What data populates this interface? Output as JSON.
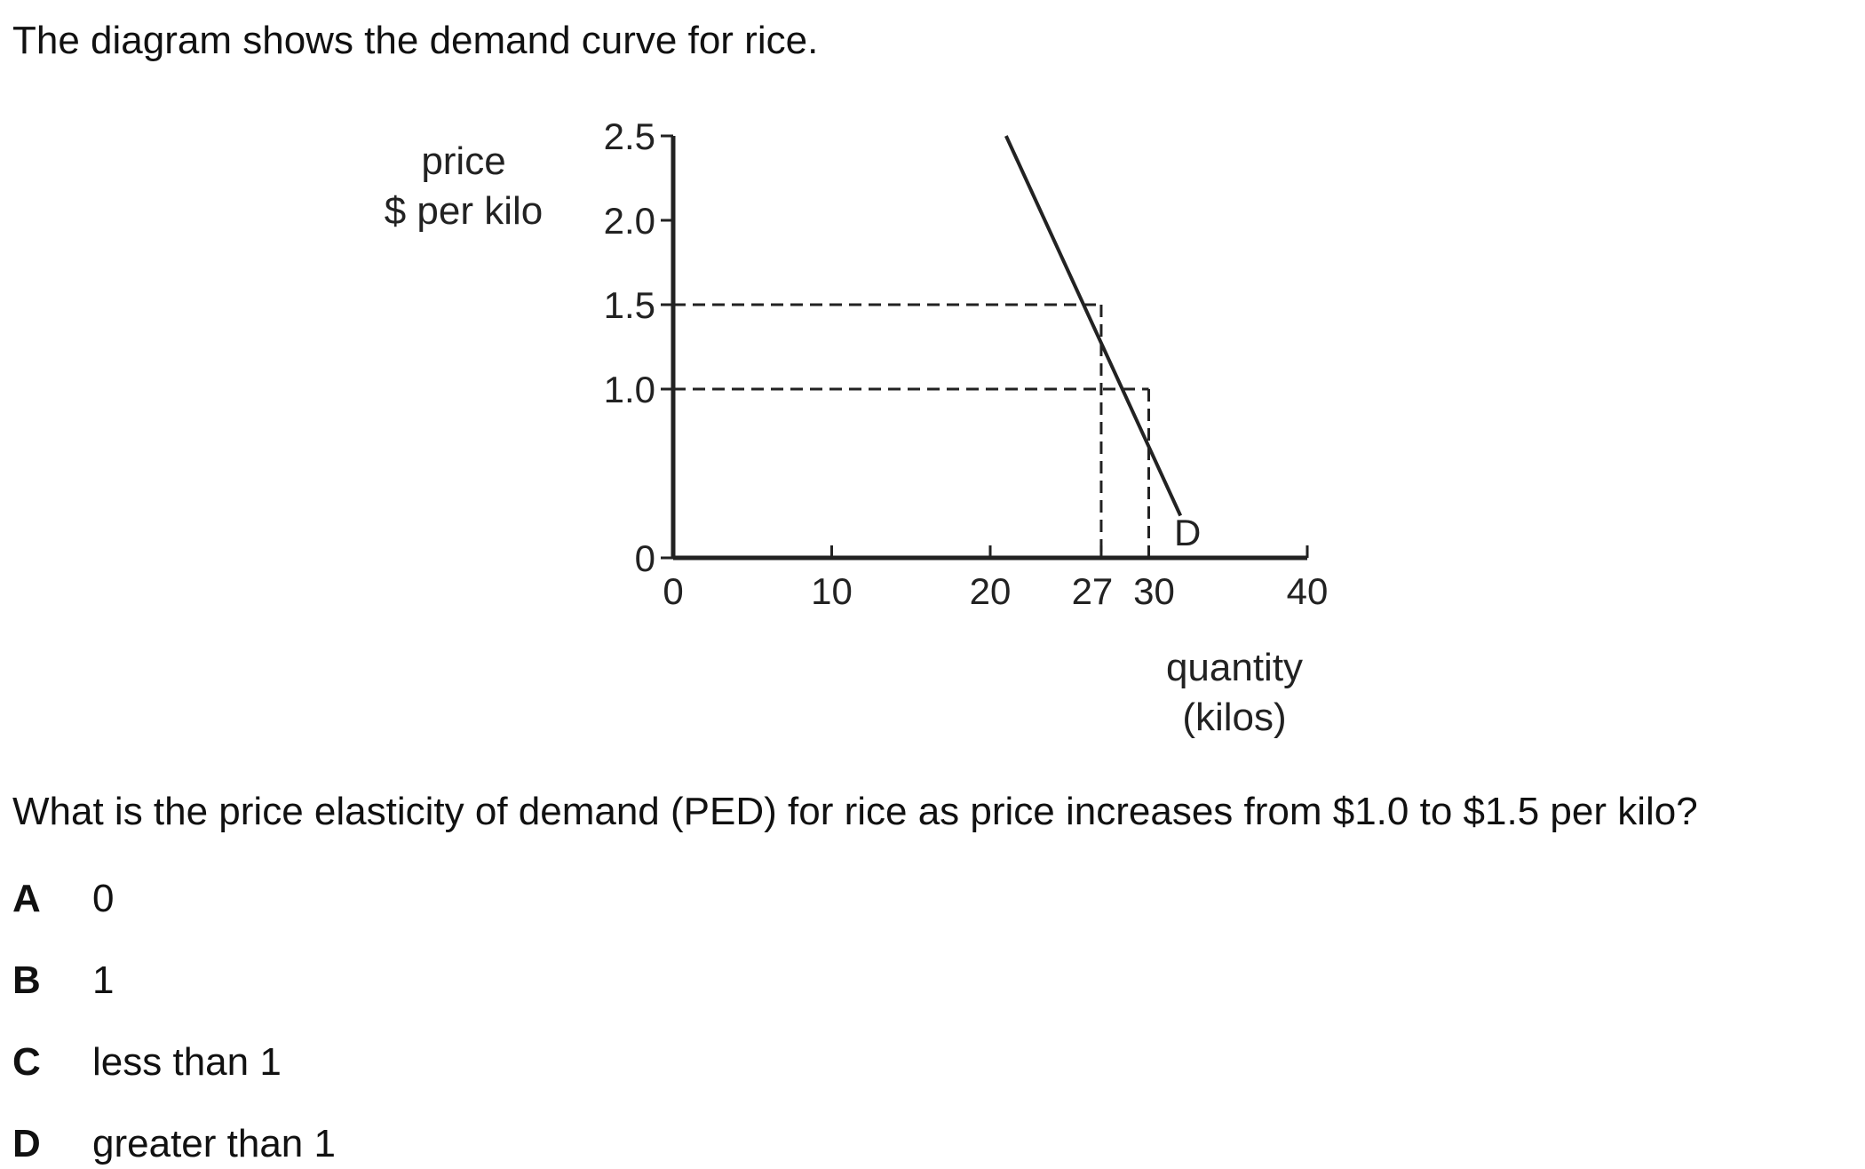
{
  "intro": "The diagram shows the demand curve for rice.",
  "chart_data": {
    "type": "line",
    "ylabel_lines": [
      "price",
      "$ per kilo"
    ],
    "xlabel_lines": [
      "quantity",
      "(kilos)"
    ],
    "xlim": [
      0,
      40
    ],
    "ylim": [
      0,
      2.5
    ],
    "x_ticks": [
      {
        "value": 0,
        "label": "0"
      },
      {
        "value": 10,
        "label": "10"
      },
      {
        "value": 20,
        "label": "20"
      },
      {
        "value": 27,
        "label": "27"
      },
      {
        "value": 30,
        "label": "30"
      },
      {
        "value": 40,
        "label": "40"
      }
    ],
    "y_ticks": [
      {
        "value": 0,
        "label": "0"
      },
      {
        "value": 1.0,
        "label": "1.0"
      },
      {
        "value": 1.5,
        "label": "1.5"
      },
      {
        "value": 2.0,
        "label": "2.0"
      },
      {
        "value": 2.5,
        "label": "2.5"
      }
    ],
    "series": [
      {
        "name": "D",
        "x": [
          21,
          32
        ],
        "y": [
          2.5,
          0.25
        ]
      }
    ],
    "reference_points": [
      {
        "x": 27,
        "y": 1.5
      },
      {
        "x": 30,
        "y": 1.0
      }
    ],
    "grid": false
  },
  "question": "What is the price elasticity of demand (PED) for rice as price increases from $1.0 to $1.5 per kilo?",
  "options": [
    {
      "letter": "A",
      "text": "0"
    },
    {
      "letter": "B",
      "text": "1"
    },
    {
      "letter": "C",
      "text": "less than 1"
    },
    {
      "letter": "D",
      "text": "greater than 1"
    }
  ]
}
